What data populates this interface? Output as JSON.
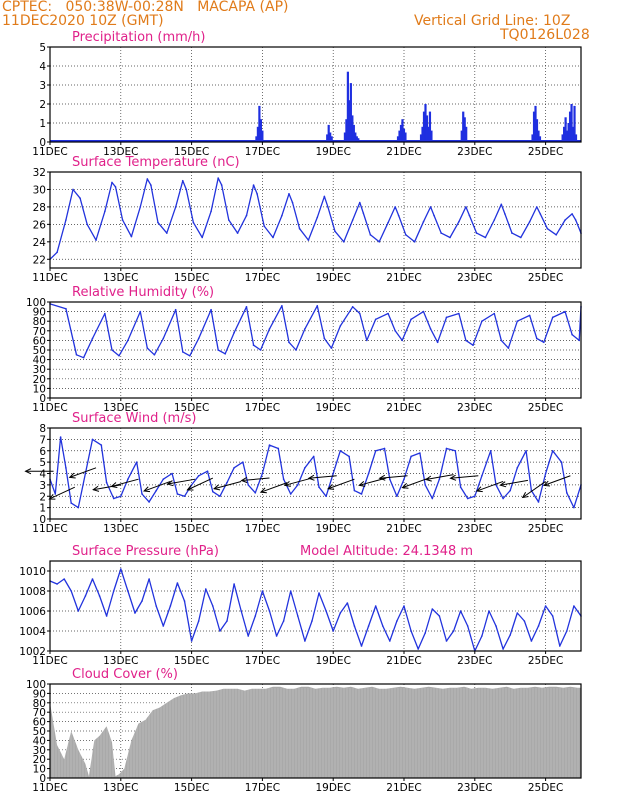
{
  "header": {
    "line1_left": "CPTEC:   050:38W-00:28N   MACAPA (AP)",
    "line2_left": "11DEC2020 10Z (GMT)",
    "line1_right": "Vertical Grid Line: 10Z",
    "line2_right": "TQ0126L028"
  },
  "colors": {
    "header": "#e07b1a",
    "title": "#e0218a",
    "line": "#2233dd",
    "bar": "#1f2fe0",
    "cloud": "#a9a9a9"
  },
  "x_ticks": [
    "11DEC",
    "13DEC",
    "15DEC",
    "17DEC",
    "19DEC",
    "21DEC",
    "23DEC",
    "25DEC"
  ],
  "x_tick_days": [
    11,
    13,
    15,
    17,
    19,
    21,
    23,
    25
  ],
  "x_range_days": [
    11.0,
    26.0
  ],
  "chart_data": [
    {
      "id": "precip",
      "type": "bar",
      "title": "Precipitation (mm/h)",
      "ylim": [
        0,
        5
      ],
      "yticks": [
        0,
        1,
        2,
        3,
        4,
        5
      ],
      "x_unit": "day of December 2020",
      "bursts": [
        {
          "x": 16.8,
          "values": [
            0.3,
            0.8,
            1.9,
            1.2,
            0.6
          ]
        },
        {
          "x": 18.8,
          "values": [
            0.4,
            0.9,
            0.5,
            0.3
          ]
        },
        {
          "x": 19.3,
          "values": [
            0.5,
            1.2,
            3.7,
            2.2,
            3.1,
            1.4,
            0.9,
            0.5,
            0.3,
            0.2
          ]
        },
        {
          "x": 20.8,
          "values": [
            0.3,
            0.6,
            0.9,
            1.2,
            0.7,
            0.5
          ]
        },
        {
          "x": 21.45,
          "values": [
            0.4,
            0.8,
            1.6,
            2.0,
            1.4,
            0.8,
            1.6,
            0.6
          ]
        },
        {
          "x": 22.6,
          "values": [
            0.6,
            1.6,
            1.3,
            0.8
          ]
        },
        {
          "x": 24.6,
          "values": [
            0.4,
            1.6,
            1.9,
            1.2,
            0.6,
            0.3
          ]
        },
        {
          "x": 25.45,
          "values": [
            0.4,
            0.8,
            1.3,
            0.6,
            1.0,
            1.6,
            2.0,
            0.8,
            1.9,
            0.4
          ]
        }
      ]
    },
    {
      "id": "temp",
      "type": "line",
      "title": "Surface Temperature (nC)",
      "ylim": [
        21,
        32
      ],
      "yticks": [
        22,
        24,
        26,
        28,
        30,
        32
      ],
      "x": [
        11.0,
        11.2,
        11.45,
        11.65,
        11.85,
        12.05,
        12.3,
        12.55,
        12.75,
        12.85,
        13.05,
        13.3,
        13.55,
        13.75,
        13.85,
        14.05,
        14.3,
        14.55,
        14.75,
        14.85,
        15.05,
        15.3,
        15.55,
        15.75,
        15.85,
        16.05,
        16.3,
        16.55,
        16.75,
        16.85,
        17.05,
        17.3,
        17.55,
        17.75,
        17.85,
        18.05,
        18.3,
        18.55,
        18.75,
        18.85,
        19.05,
        19.3,
        19.55,
        19.75,
        19.85,
        20.05,
        20.3,
        20.55,
        20.75,
        20.85,
        21.05,
        21.3,
        21.55,
        21.75,
        21.85,
        22.05,
        22.3,
        22.55,
        22.75,
        22.85,
        23.05,
        23.3,
        23.55,
        23.75,
        23.85,
        24.05,
        24.3,
        24.55,
        24.75,
        24.85,
        25.05,
        25.3,
        25.55,
        25.75,
        25.85,
        26.0
      ],
      "y": [
        22.0,
        22.8,
        26.5,
        30.0,
        29.0,
        26.0,
        24.2,
        27.5,
        30.8,
        30.3,
        26.5,
        24.6,
        28.0,
        31.2,
        30.5,
        26.2,
        25.0,
        28.0,
        31.0,
        30.0,
        26.2,
        24.5,
        27.5,
        31.3,
        30.5,
        26.5,
        25.0,
        27.0,
        30.5,
        29.5,
        25.8,
        24.5,
        27.0,
        29.5,
        28.5,
        25.5,
        24.2,
        26.8,
        29.2,
        28.0,
        25.2,
        24.0,
        26.5,
        28.5,
        27.3,
        24.8,
        24.0,
        26.2,
        28.0,
        27.0,
        24.8,
        24.0,
        26.3,
        28.0,
        27.0,
        25.0,
        24.5,
        26.3,
        28.0,
        27.0,
        25.0,
        24.5,
        26.5,
        28.3,
        27.2,
        25.0,
        24.5,
        26.3,
        28.0,
        27.2,
        25.5,
        24.8,
        26.5,
        27.2,
        26.5,
        25.0
      ]
    },
    {
      "id": "rh",
      "type": "line",
      "title": "Relative Humidity (%)",
      "ylim": [
        0,
        100
      ],
      "yticks": [
        0,
        10,
        20,
        30,
        40,
        50,
        60,
        70,
        80,
        90,
        100
      ],
      "x": [
        11.0,
        11.45,
        11.75,
        11.95,
        12.2,
        12.55,
        12.75,
        12.95,
        13.2,
        13.55,
        13.75,
        13.95,
        14.2,
        14.55,
        14.75,
        14.95,
        15.2,
        15.55,
        15.75,
        15.95,
        16.2,
        16.55,
        16.75,
        16.95,
        17.2,
        17.55,
        17.75,
        17.95,
        18.2,
        18.55,
        18.75,
        18.95,
        19.2,
        19.55,
        19.75,
        19.95,
        20.2,
        20.55,
        20.75,
        20.95,
        21.2,
        21.55,
        21.75,
        21.95,
        22.2,
        22.55,
        22.75,
        22.95,
        23.2,
        23.55,
        23.75,
        23.95,
        24.2,
        24.55,
        24.75,
        24.95,
        25.2,
        25.55,
        25.75,
        25.95,
        26.0
      ],
      "y": [
        98,
        93,
        45,
        42,
        62,
        88,
        50,
        44,
        60,
        90,
        52,
        45,
        62,
        92,
        48,
        44,
        62,
        92,
        50,
        46,
        68,
        95,
        55,
        50,
        72,
        96,
        58,
        50,
        72,
        96,
        62,
        52,
        75,
        95,
        88,
        60,
        82,
        88,
        70,
        60,
        82,
        90,
        72,
        58,
        84,
        88,
        60,
        55,
        80,
        88,
        60,
        52,
        80,
        86,
        62,
        58,
        84,
        90,
        66,
        60,
        95
      ]
    },
    {
      "id": "wind",
      "type": "line",
      "title": "Surface Wind (m/s)",
      "ylim": [
        0,
        8
      ],
      "yticks": [
        0,
        1,
        2,
        3,
        4,
        5,
        6,
        7,
        8
      ],
      "x": [
        11.0,
        11.15,
        11.3,
        11.45,
        11.6,
        11.8,
        12.0,
        12.2,
        12.45,
        12.6,
        12.8,
        13.0,
        13.2,
        13.45,
        13.6,
        13.8,
        14.0,
        14.2,
        14.45,
        14.6,
        14.8,
        15.0,
        15.2,
        15.45,
        15.6,
        15.8,
        16.0,
        16.2,
        16.45,
        16.6,
        16.8,
        17.0,
        17.2,
        17.45,
        17.6,
        17.8,
        18.0,
        18.2,
        18.45,
        18.6,
        18.8,
        19.0,
        19.2,
        19.45,
        19.6,
        19.8,
        20.0,
        20.2,
        20.45,
        20.6,
        20.8,
        21.0,
        21.2,
        21.45,
        21.6,
        21.8,
        22.0,
        22.2,
        22.45,
        22.6,
        22.8,
        23.0,
        23.2,
        23.45,
        23.6,
        23.8,
        24.0,
        24.2,
        24.45,
        24.6,
        24.8,
        25.0,
        25.2,
        25.45,
        25.6,
        25.8,
        26.0
      ],
      "y": [
        3.5,
        2.2,
        7.2,
        4.5,
        1.4,
        1.0,
        4.0,
        7.0,
        6.5,
        3.2,
        1.8,
        2.0,
        3.5,
        5.0,
        2.2,
        1.5,
        2.5,
        3.5,
        4.0,
        2.2,
        2.0,
        3.0,
        3.8,
        4.2,
        2.4,
        2.0,
        3.2,
        4.5,
        5.0,
        3.0,
        2.3,
        4.0,
        6.5,
        6.2,
        3.5,
        2.2,
        3.0,
        4.5,
        5.5,
        2.8,
        2.0,
        4.0,
        6.0,
        5.5,
        2.5,
        2.2,
        4.0,
        6.0,
        6.2,
        3.5,
        2.0,
        3.5,
        5.5,
        5.8,
        3.0,
        1.8,
        3.5,
        6.2,
        6.0,
        2.8,
        1.8,
        2.0,
        3.8,
        6.0,
        3.0,
        1.8,
        2.5,
        4.5,
        6.0,
        2.5,
        1.5,
        4.0,
        6.0,
        5.0,
        2.3,
        1.0,
        3.0
      ],
      "vectors": [
        {
          "x": 11.1,
          "y": 4.2,
          "dir": 180
        },
        {
          "x": 11.7,
          "y": 2.8,
          "dir": 205
        },
        {
          "x": 12.3,
          "y": 4.5,
          "dir": 200
        },
        {
          "x": 13.0,
          "y": 3.0,
          "dir": 190
        },
        {
          "x": 13.5,
          "y": 3.5,
          "dir": 195
        },
        {
          "x": 14.4,
          "y": 3.3,
          "dir": 200
        },
        {
          "x": 15.1,
          "y": 3.5,
          "dir": 190
        },
        {
          "x": 15.6,
          "y": 3.6,
          "dir": 205
        },
        {
          "x": 16.4,
          "y": 3.3,
          "dir": 195
        },
        {
          "x": 17.2,
          "y": 3.6,
          "dir": 185
        },
        {
          "x": 17.7,
          "y": 3.2,
          "dir": 200
        },
        {
          "x": 18.4,
          "y": 3.6,
          "dir": 195
        },
        {
          "x": 19.1,
          "y": 3.8,
          "dir": 185
        },
        {
          "x": 19.6,
          "y": 3.5,
          "dir": 200
        },
        {
          "x": 20.5,
          "y": 3.6,
          "dir": 195
        },
        {
          "x": 21.1,
          "y": 3.8,
          "dir": 185
        },
        {
          "x": 21.7,
          "y": 3.6,
          "dir": 200
        },
        {
          "x": 22.4,
          "y": 3.9,
          "dir": 190
        },
        {
          "x": 23.1,
          "y": 3.8,
          "dir": 185
        },
        {
          "x": 23.8,
          "y": 3.3,
          "dir": 200
        },
        {
          "x": 24.5,
          "y": 3.4,
          "dir": 190
        },
        {
          "x": 25.0,
          "y": 3.3,
          "dir": 215
        },
        {
          "x": 25.7,
          "y": 3.8,
          "dir": 200
        }
      ]
    },
    {
      "id": "pres",
      "type": "line",
      "title": "Surface Pressure (hPa)",
      "subtitle": "Model Altitude: 24.1348 m",
      "ylim": [
        1002,
        1011
      ],
      "yticks": [
        1002,
        1004,
        1006,
        1008,
        1010
      ],
      "x": [
        11.0,
        11.2,
        11.4,
        11.6,
        11.8,
        12.0,
        12.2,
        12.4,
        12.6,
        12.8,
        13.0,
        13.2,
        13.4,
        13.6,
        13.8,
        14.0,
        14.2,
        14.4,
        14.6,
        14.8,
        15.0,
        15.2,
        15.4,
        15.6,
        15.8,
        16.0,
        16.2,
        16.4,
        16.6,
        16.8,
        17.0,
        17.2,
        17.4,
        17.6,
        17.8,
        18.0,
        18.2,
        18.4,
        18.6,
        18.8,
        19.0,
        19.2,
        19.4,
        19.6,
        19.8,
        20.0,
        20.2,
        20.4,
        20.6,
        20.8,
        21.0,
        21.2,
        21.4,
        21.6,
        21.8,
        22.0,
        22.2,
        22.4,
        22.6,
        22.8,
        23.0,
        23.2,
        23.4,
        23.6,
        23.8,
        24.0,
        24.2,
        24.4,
        24.6,
        24.8,
        25.0,
        25.2,
        25.4,
        25.6,
        25.8,
        26.0
      ],
      "y": [
        1009.0,
        1008.7,
        1009.2,
        1008.0,
        1006.0,
        1007.5,
        1009.2,
        1007.5,
        1005.5,
        1008.0,
        1010.2,
        1008.0,
        1005.8,
        1007.0,
        1009.2,
        1006.5,
        1004.5,
        1006.5,
        1008.8,
        1007.0,
        1003.0,
        1005.0,
        1008.2,
        1006.5,
        1004.0,
        1005.0,
        1008.7,
        1006.0,
        1003.5,
        1005.5,
        1008.0,
        1006.0,
        1003.5,
        1005.0,
        1008.0,
        1005.5,
        1003.0,
        1005.0,
        1007.8,
        1006.0,
        1004.0,
        1005.8,
        1006.8,
        1004.5,
        1002.5,
        1004.5,
        1006.5,
        1004.5,
        1003.0,
        1005.0,
        1006.5,
        1004.0,
        1002.2,
        1003.8,
        1006.2,
        1005.5,
        1003.0,
        1004.0,
        1006.0,
        1004.5,
        1002.0,
        1003.5,
        1006.0,
        1004.5,
        1002.2,
        1003.6,
        1005.8,
        1005.0,
        1003.0,
        1004.5,
        1006.5,
        1005.5,
        1002.5,
        1004.0,
        1006.5,
        1005.5
      ]
    },
    {
      "id": "cloud",
      "type": "area",
      "title": "Cloud Cover (%)",
      "ylim": [
        0,
        100
      ],
      "yticks": [
        0,
        10,
        20,
        30,
        40,
        50,
        60,
        70,
        80,
        90,
        100
      ],
      "x": [
        11.0,
        11.2,
        11.4,
        11.6,
        11.8,
        12.0,
        12.1,
        12.25,
        12.4,
        12.6,
        12.75,
        12.85,
        12.95,
        13.1,
        13.3,
        13.5,
        13.7,
        13.9,
        14.1,
        14.3,
        14.5,
        14.7,
        14.9,
        15.1,
        15.3,
        15.5,
        15.7,
        15.9,
        16.1,
        16.3,
        16.5,
        16.7,
        16.9,
        17.1,
        17.3,
        17.5,
        17.7,
        17.9,
        18.1,
        18.3,
        18.5,
        18.7,
        18.9,
        19.1,
        19.3,
        19.5,
        19.7,
        19.9,
        20.1,
        20.3,
        20.5,
        20.7,
        20.9,
        21.1,
        21.3,
        21.5,
        21.7,
        21.9,
        22.1,
        22.3,
        22.5,
        22.7,
        22.9,
        23.1,
        23.3,
        23.5,
        23.7,
        23.9,
        24.1,
        24.3,
        24.5,
        24.7,
        24.9,
        25.1,
        25.3,
        25.5,
        25.7,
        25.9,
        26.0
      ],
      "y": [
        80,
        35,
        20,
        50,
        30,
        15,
        2,
        40,
        45,
        55,
        38,
        2,
        4,
        10,
        40,
        58,
        62,
        72,
        75,
        80,
        85,
        88,
        90,
        90,
        92,
        92,
        93,
        95,
        95,
        95,
        93,
        95,
        95,
        95,
        97,
        97,
        95,
        95,
        97,
        97,
        95,
        96,
        96,
        97,
        96,
        97,
        95,
        96,
        97,
        95,
        95,
        96,
        97,
        96,
        95,
        96,
        97,
        96,
        95,
        96,
        96,
        97,
        95,
        96,
        96,
        95,
        96,
        97,
        95,
        96,
        96,
        97,
        96,
        97,
        97,
        96,
        97,
        96,
        96
      ]
    }
  ]
}
